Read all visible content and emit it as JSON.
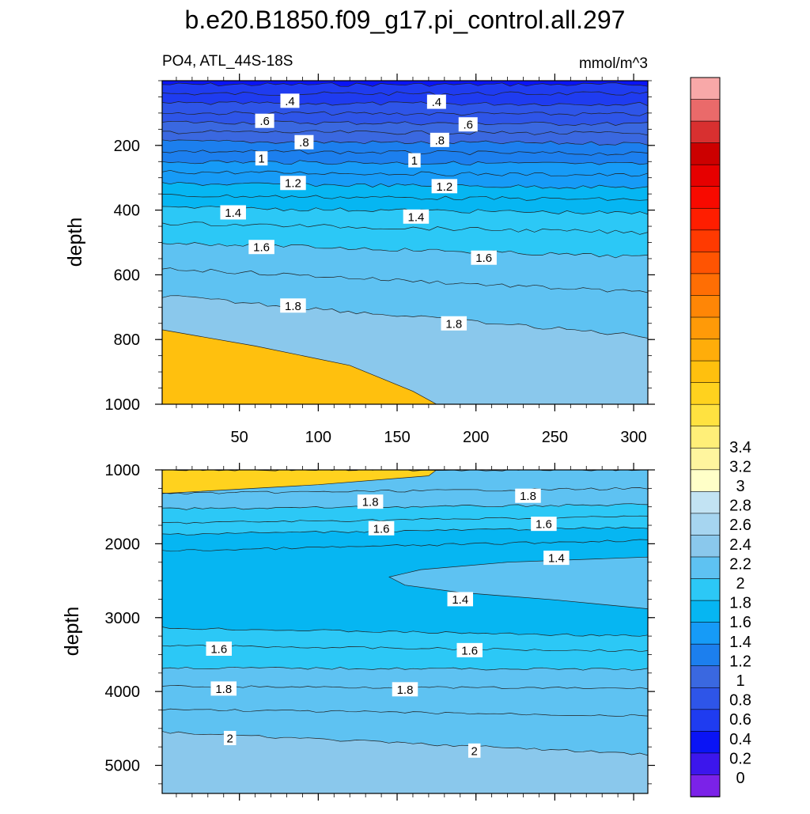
{
  "chart_data": {
    "type": "heatmap",
    "title": "b.e20.B1850.f09_g17.pi_control.all.297",
    "variable_label": "PO4, ATL_44S-18S",
    "units_label": "mmol/m^3",
    "colorbar": {
      "levels": [
        0,
        0.2,
        0.4,
        0.6,
        0.8,
        1,
        1.2,
        1.4,
        1.6,
        1.8,
        2,
        2.2,
        2.4,
        2.6,
        2.8,
        3,
        3.2,
        3.4
      ],
      "tick_labels": [
        "0",
        "0.2",
        "0.4",
        "0.6",
        "0.8",
        "1",
        "1.2",
        "1.4",
        "1.6",
        "1.8",
        "2",
        "2.2",
        "2.4",
        "2.6",
        "2.8",
        "3",
        "3.2",
        "3.4"
      ],
      "colors": [
        "#7b22e8",
        "#3c16ec",
        "#0a14f5",
        "#1f3cf0",
        "#2e55e8",
        "#3a68e0",
        "#1c7fee",
        "#169bf7",
        "#06b6f2",
        "#2cc8f6",
        "#5ec2f2",
        "#8ac8ec",
        "#a6d5f0",
        "#c2e3f3",
        "#ffffc8",
        "#fff59e",
        "#ffef78",
        "#ffe240",
        "#ffd21e",
        "#ffc00e",
        "#ffad0a",
        "#ff9a08",
        "#ff8606",
        "#ff6e04",
        "#ff5402",
        "#ff3a01",
        "#ff1e00",
        "#f80a00",
        "#e60000",
        "#cc0000",
        "#d83030",
        "#ea6a6a",
        "#f8a8a8"
      ]
    },
    "panels": [
      {
        "name": "upper",
        "ylabel": "depth",
        "ylim": [
          0,
          1000
        ],
        "y_reversed": true,
        "yticks": [
          200,
          400,
          600,
          800,
          1000
        ],
        "xlim": [
          1,
          309
        ],
        "xticks": [
          50,
          100,
          150,
          200,
          250,
          300
        ],
        "x_tick_labels_shown": true,
        "contour_labels": [
          {
            "text": ".4",
            "x": 82,
            "y": 62
          },
          {
            "text": ".4",
            "x": 175,
            "y": 65
          },
          {
            "text": ".6",
            "x": 66,
            "y": 124
          },
          {
            "text": ".6",
            "x": 195,
            "y": 135
          },
          {
            "text": ".8",
            "x": 91,
            "y": 190
          },
          {
            "text": ".8",
            "x": 177,
            "y": 183
          },
          {
            "text": "1",
            "x": 64,
            "y": 240
          },
          {
            "text": "1",
            "x": 161,
            "y": 246
          },
          {
            "text": "1.2",
            "x": 84,
            "y": 316
          },
          {
            "text": "1.2",
            "x": 180,
            "y": 326
          },
          {
            "text": "1.4",
            "x": 46,
            "y": 407
          },
          {
            "text": "1.4",
            "x": 162,
            "y": 420
          },
          {
            "text": "1.6",
            "x": 64,
            "y": 514
          },
          {
            "text": "1.6",
            "x": 205,
            "y": 547
          },
          {
            "text": "1.8",
            "x": 84,
            "y": 695
          },
          {
            "text": "1.8",
            "x": 186,
            "y": 750
          }
        ]
      },
      {
        "name": "lower",
        "ylabel": "depth",
        "ylim": [
          1000,
          5380
        ],
        "y_reversed": true,
        "yticks": [
          1000,
          2000,
          3000,
          4000,
          5000
        ],
        "xlim": [
          1,
          309
        ],
        "xticks": [
          50,
          100,
          150,
          200,
          250,
          300
        ],
        "x_tick_labels_shown": false,
        "contour_labels": [
          {
            "text": "1.8",
            "x": 133,
            "y": 1430
          },
          {
            "text": "1.8",
            "x": 233,
            "y": 1350
          },
          {
            "text": "1.6",
            "x": 140,
            "y": 1790
          },
          {
            "text": "1.6",
            "x": 243,
            "y": 1730
          },
          {
            "text": "1.4",
            "x": 251,
            "y": 2190
          },
          {
            "text": "1.4",
            "x": 190,
            "y": 2750
          },
          {
            "text": "1.6",
            "x": 37,
            "y": 3420
          },
          {
            "text": "1.6",
            "x": 196,
            "y": 3440
          },
          {
            "text": "1.8",
            "x": 40,
            "y": 3960
          },
          {
            "text": "1.8",
            "x": 155,
            "y": 3970
          },
          {
            "text": "2",
            "x": 44,
            "y": 4630
          },
          {
            "text": "2",
            "x": 199,
            "y": 4800
          }
        ]
      }
    ]
  }
}
